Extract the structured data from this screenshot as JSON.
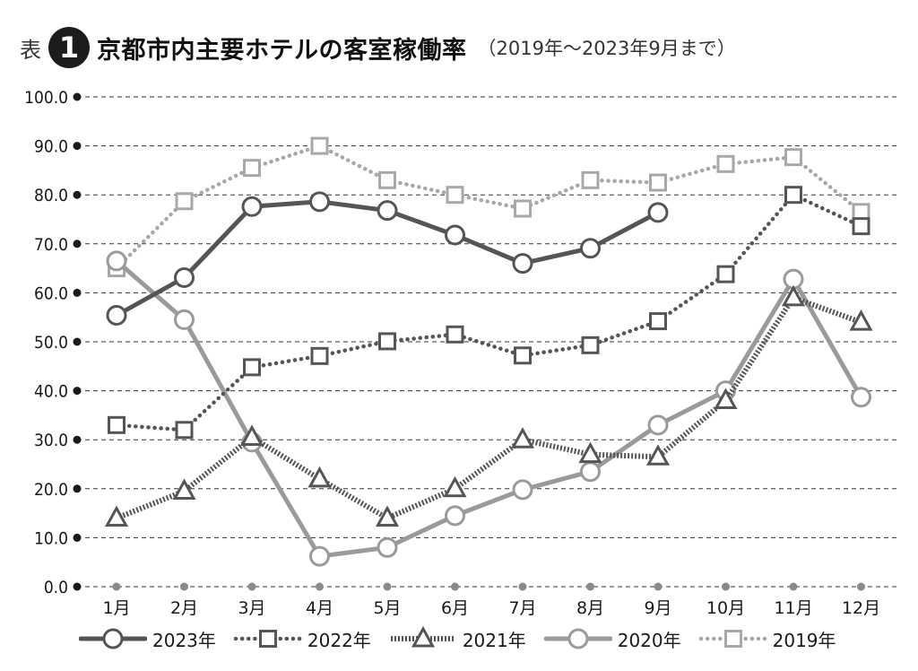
{
  "title": {
    "prefix": "表",
    "number": "1",
    "main": "京都市内主要ホテルの客室稼働率",
    "sub": "（2019年～2023年9月まで）"
  },
  "chart_data": {
    "type": "line",
    "title": "京都市内主要ホテルの客室稼働率",
    "categories": [
      "1月",
      "2月",
      "3月",
      "4月",
      "5月",
      "6月",
      "7月",
      "8月",
      "9月",
      "10月",
      "11月",
      "12月"
    ],
    "ylim": [
      0,
      100
    ],
    "y_ticks": [
      "0.0",
      "10.0",
      "20.0",
      "30.0",
      "40.0",
      "50.0",
      "60.0",
      "70.0",
      "80.0",
      "90.0",
      "100.0"
    ],
    "grid": true,
    "legend_position": "bottom",
    "series": [
      {
        "name": "2023年",
        "color": "#555555",
        "line": "solid",
        "marker": "circle",
        "values": [
          55.4,
          63.1,
          77.6,
          78.6,
          76.8,
          71.8,
          66.0,
          69.1,
          76.4,
          null,
          null,
          null
        ]
      },
      {
        "name": "2022年",
        "color": "#555555",
        "line": "dotted",
        "marker": "square",
        "values": [
          33.0,
          32.0,
          44.8,
          47.1,
          50.1,
          51.5,
          47.2,
          49.3,
          54.2,
          63.8,
          80.0,
          73.6
        ]
      },
      {
        "name": "2021年",
        "color": "#555555",
        "line": "double-dotted",
        "marker": "triangle",
        "values": [
          14.0,
          19.5,
          30.5,
          22.0,
          14.0,
          20.0,
          30.0,
          27.0,
          26.5,
          38.0,
          59.0,
          54.0
        ]
      },
      {
        "name": "2020年",
        "color": "#9a9a9a",
        "line": "solid",
        "marker": "circle",
        "values": [
          66.5,
          54.5,
          29.5,
          6.2,
          8.0,
          14.5,
          19.8,
          23.5,
          33.0,
          40.0,
          62.8,
          38.7
        ]
      },
      {
        "name": "2019年",
        "color": "#a8a8a8",
        "line": "dotted",
        "marker": "square",
        "values": [
          65.0,
          78.7,
          85.5,
          90.0,
          83.0,
          80.0,
          77.2,
          83.0,
          82.5,
          86.3,
          87.7,
          76.5
        ]
      }
    ]
  }
}
